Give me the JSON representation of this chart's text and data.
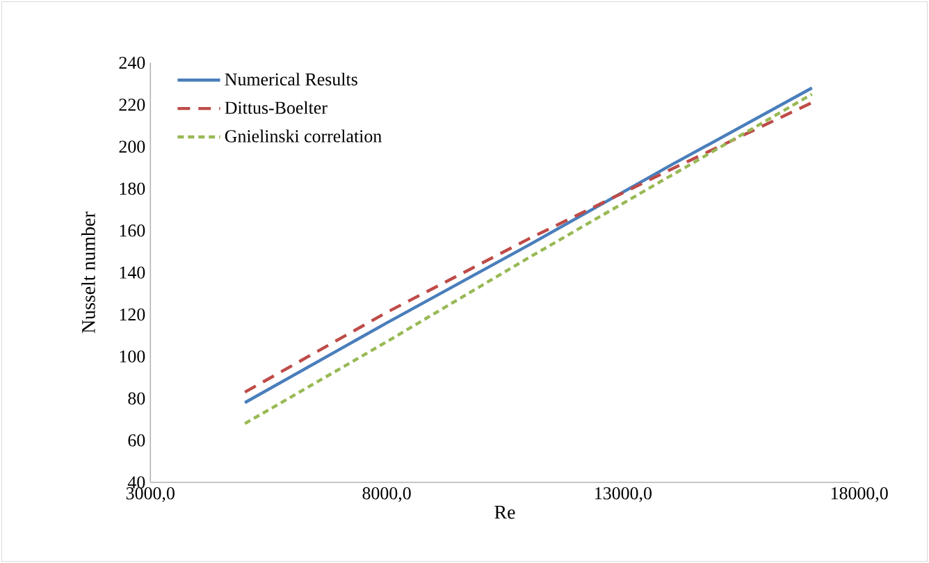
{
  "chart_data": {
    "type": "line",
    "xlabel": "Re",
    "ylabel": "Nusselt number",
    "x": [
      5000,
      8000,
      11000,
      14000,
      17000
    ],
    "series": [
      {
        "name": "Numerical Results",
        "color": "#4a7ebb",
        "line_style": "solid",
        "values": [
          78,
          116,
          153,
          191,
          228
        ]
      },
      {
        "name": "Dittus-Boelter",
        "color": "#be4b48",
        "line_style": "dashed",
        "values": [
          83,
          121,
          156,
          189,
          221
        ]
      },
      {
        "name": "Gnielinski correlation",
        "color": "#98b954",
        "line_style": "dotted",
        "values": [
          68,
          107,
          147,
          186,
          225
        ]
      }
    ],
    "xlim": [
      3000,
      18000
    ],
    "ylim": [
      40,
      240
    ],
    "xticks": [
      {
        "value": 3000,
        "label": "3000,0"
      },
      {
        "value": 8000,
        "label": "8000,0"
      },
      {
        "value": 13000,
        "label": "13000,0"
      },
      {
        "value": 18000,
        "label": "18000,0"
      }
    ],
    "yticks": [
      40,
      60,
      80,
      100,
      120,
      140,
      160,
      180,
      200,
      220,
      240
    ],
    "grid": false,
    "legend": "top left",
    "marker": "none"
  }
}
